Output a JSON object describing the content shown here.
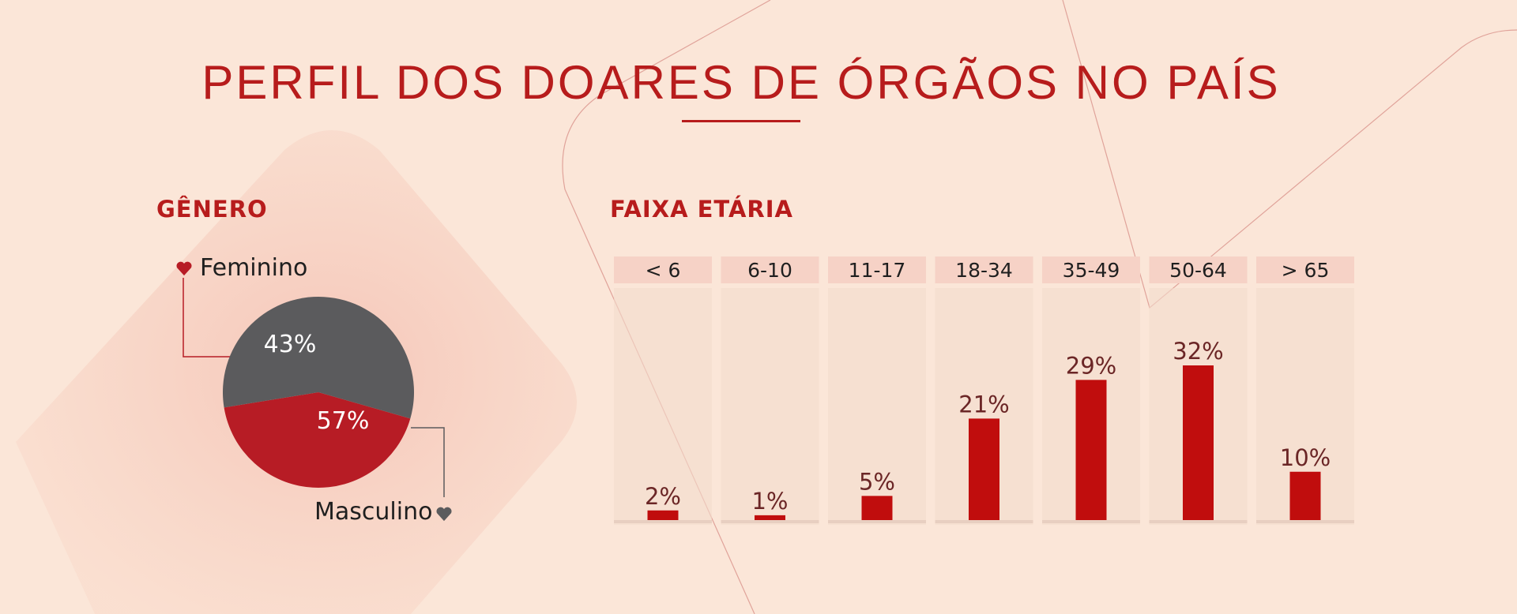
{
  "title": "PERFIL DOS DOARES DE ÓRGÃOS NO PAÍS",
  "colors": {
    "accent": "#b71c1c",
    "bar": "#c00d0d",
    "male": "#5b5b5d",
    "female": "#b71c25",
    "background": "#fbe6d8"
  },
  "chart_data": [
    {
      "type": "pie",
      "title": "GÊNERO",
      "slices": [
        {
          "label": "Feminino",
          "value": 43,
          "display": "43%"
        },
        {
          "label": "Masculino",
          "value": 57,
          "display": "57%"
        }
      ]
    },
    {
      "type": "bar",
      "title": "FAIXA ETÁRIA",
      "categories": [
        "< 6",
        "6-10",
        "11-17",
        "18-34",
        "35-49",
        "50-64",
        "> 65"
      ],
      "values": [
        2,
        1,
        5,
        21,
        29,
        32,
        10
      ],
      "labels": [
        "2%",
        "1%",
        "5%",
        "21%",
        "29%",
        "32%",
        "10%"
      ],
      "xlabel": "",
      "ylabel": "",
      "ylim": [
        0,
        32
      ],
      "grid": false
    }
  ]
}
